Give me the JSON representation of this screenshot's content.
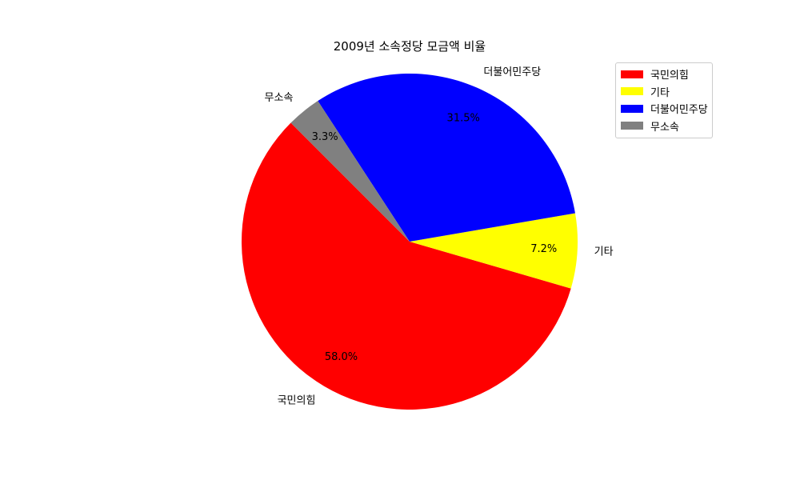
{
  "chart_data": {
    "type": "pie",
    "title": "2009년 소속정당 모금액 비율",
    "categories": [
      "국민의힘",
      "기타",
      "더불어민주당",
      "무소속"
    ],
    "values": [
      58.0,
      7.2,
      31.5,
      3.3
    ],
    "percent_labels": [
      "58.0%",
      "7.2%",
      "31.5%",
      "3.3%"
    ],
    "colors": [
      "#ff0000",
      "#ffff00",
      "#0000ff",
      "#808080"
    ],
    "start_angle_deg": 135,
    "counterclockwise": true,
    "legend_position": "upper right",
    "legend": [
      "국민의힘",
      "기타",
      "더불어민주당",
      "무소속"
    ]
  }
}
